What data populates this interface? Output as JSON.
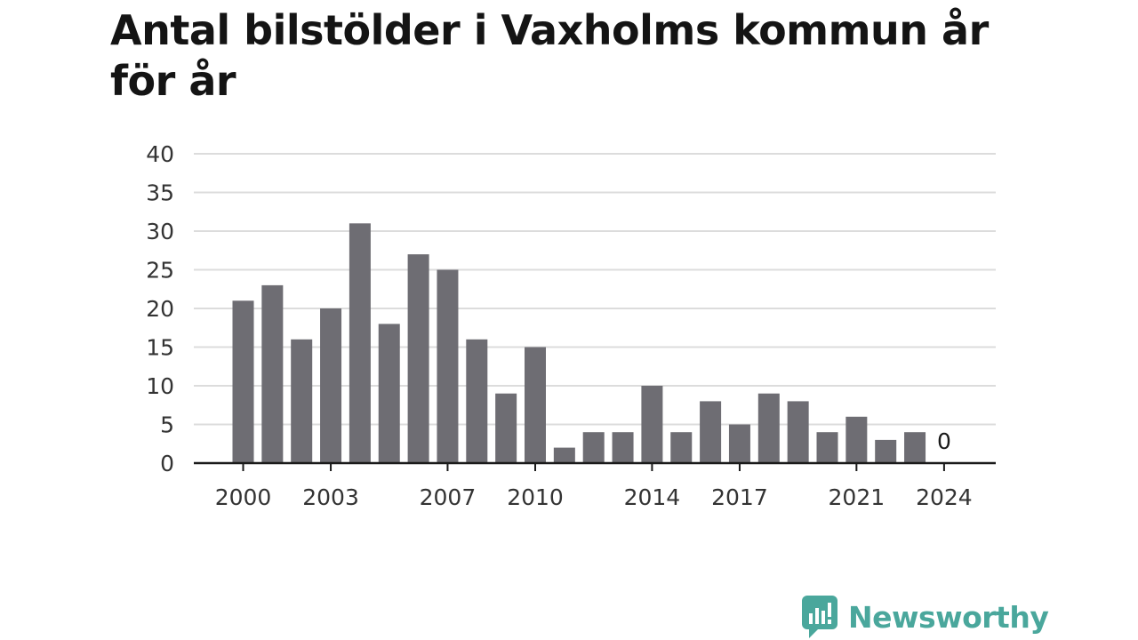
{
  "chart_data": {
    "type": "bar",
    "title": "Antal bilstölder i Vaxholms kommun år för år",
    "xlabel": "",
    "ylabel": "",
    "categories": [
      "2000",
      "2001",
      "2002",
      "2003",
      "2004",
      "2005",
      "2006",
      "2007",
      "2008",
      "2009",
      "2010",
      "2011",
      "2012",
      "2013",
      "2014",
      "2015",
      "2016",
      "2017",
      "2018",
      "2019",
      "2020",
      "2021",
      "2022",
      "2023",
      "2024"
    ],
    "values": [
      21,
      23,
      16,
      20,
      31,
      18,
      27,
      25,
      16,
      9,
      15,
      2,
      4,
      4,
      10,
      4,
      8,
      5,
      9,
      8,
      4,
      6,
      3,
      4,
      0
    ],
    "x_tick_labels": [
      "2000",
      "2003",
      "2007",
      "2010",
      "2014",
      "2017",
      "2021",
      "2024"
    ],
    "y_ticks": [
      "0",
      "5",
      "10",
      "15",
      "20",
      "25",
      "30",
      "35",
      "40"
    ],
    "ylim": [
      0,
      40
    ],
    "grid": "horizontal",
    "bar_color": "#6e6d73",
    "data_labels": [
      {
        "category": "2024",
        "text": "0"
      }
    ],
    "legend": "none"
  },
  "branding": {
    "logo_text": "Newsworthy",
    "logo_color": "#4aa79c"
  }
}
